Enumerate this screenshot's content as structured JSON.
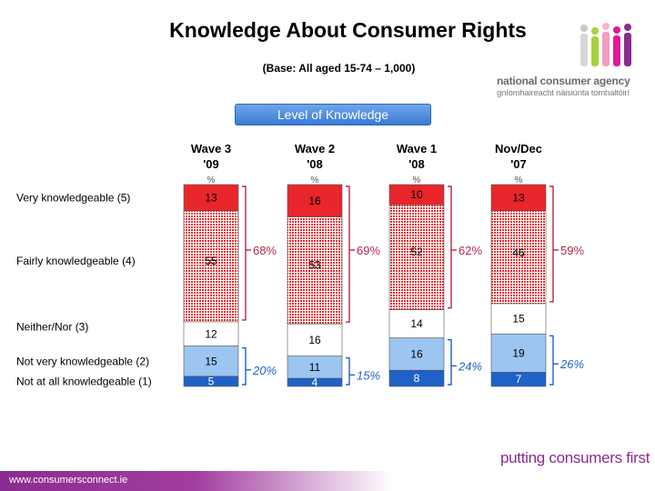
{
  "header": {
    "title": "Knowledge About Consumer Rights",
    "subtitle": "(Base: All aged 15-74 – 1,000)"
  },
  "branding": {
    "agency_name": "national consumer agency",
    "agency_irish": "gníomhaireacht náisiúnta tomhaltóirí",
    "tagline": "putting consumers first",
    "website": "www.consumersconnect.ie",
    "purple": "#8a2b8f"
  },
  "banner": {
    "label": "Level of Knowledge"
  },
  "chart_data": {
    "type": "bar",
    "stacked": true,
    "percent_unit": "%",
    "categories": [
      "Wave 3 '09",
      "Wave 2 '08",
      "Wave 1 '08",
      "Nov/Dec '07"
    ],
    "category_lines": [
      [
        "Wave 3",
        "'09"
      ],
      [
        "Wave 2",
        "'08"
      ],
      [
        "Wave 1",
        "'08"
      ],
      [
        "Nov/Dec",
        "'07"
      ]
    ],
    "series": [
      {
        "name": "Very knowledgeable (5)",
        "values": [
          13,
          16,
          10,
          13
        ],
        "color": "#e8262b",
        "pattern": "solid"
      },
      {
        "name": "Fairly knowledgeable (4)",
        "values": [
          55,
          53,
          52,
          46
        ],
        "color": "#e8262b",
        "pattern": "dotted"
      },
      {
        "name": "Neither/Nor (3)",
        "values": [
          12,
          16,
          14,
          15
        ],
        "color": "#ffffff",
        "pattern": "solid"
      },
      {
        "name": "Not very knowledgeable (2)",
        "values": [
          15,
          11,
          16,
          19
        ],
        "color": "#9cc5f2",
        "pattern": "solid"
      },
      {
        "name": "Not at all knowledgeable (1)",
        "values": [
          5,
          4,
          8,
          7
        ],
        "color": "#1f62c7",
        "pattern": "solid"
      }
    ],
    "top_two_box": {
      "labels": [
        "68%",
        "69%",
        "62%",
        "59%"
      ],
      "color": "#b02a4a"
    },
    "bottom_two_box": {
      "labels": [
        "20%",
        "15%",
        "24%",
        "26%"
      ],
      "color": "#1f62c7"
    },
    "ylim": [
      0,
      100
    ],
    "grid": false
  }
}
